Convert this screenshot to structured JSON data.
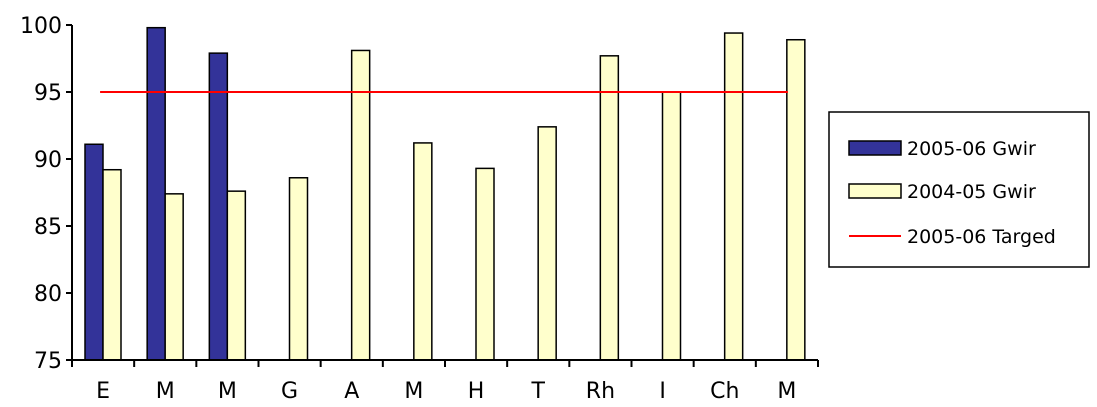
{
  "chart_data": {
    "type": "bar",
    "categories": [
      "E",
      "M",
      "M",
      "G",
      "A",
      "M",
      "H",
      "T",
      "Rh",
      "I",
      "Ch",
      "M"
    ],
    "series": [
      {
        "name": "2005-06 Gwir",
        "color": "#333399",
        "values": [
          91.1,
          99.8,
          97.9,
          null,
          null,
          null,
          null,
          null,
          null,
          null,
          null,
          null
        ]
      },
      {
        "name": "2004-05 Gwir",
        "color": "#FFFFCC",
        "values": [
          89.2,
          87.4,
          87.6,
          88.6,
          98.1,
          91.2,
          89.3,
          92.4,
          97.7,
          95.0,
          99.4,
          98.9
        ]
      }
    ],
    "target": {
      "name": "2005-06 Targed",
      "value": 95,
      "color": "#FF0000"
    },
    "ylim": [
      75,
      100
    ],
    "yticks": [
      75,
      80,
      85,
      90,
      95,
      100
    ],
    "legend_position": "right",
    "grid": false
  }
}
